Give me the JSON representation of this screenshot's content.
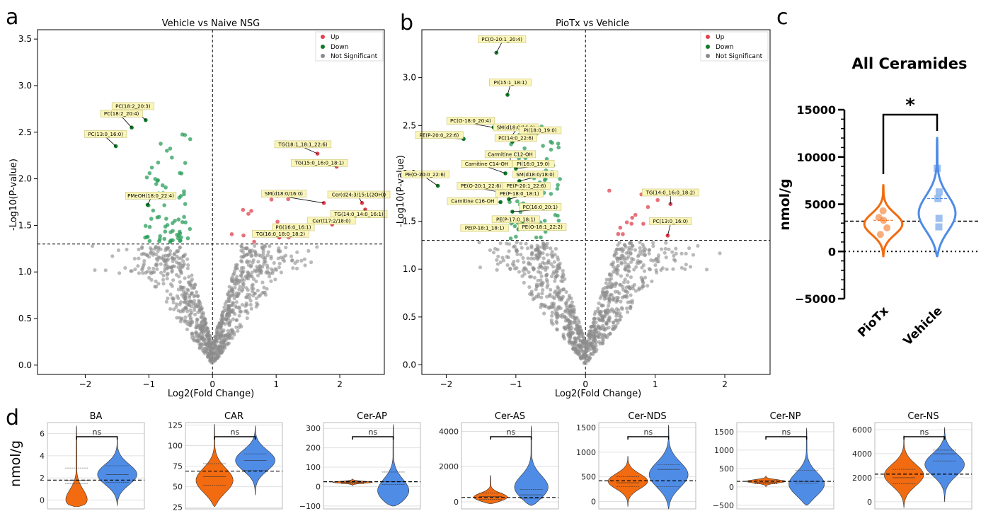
{
  "panel_letters": [
    "a",
    "b",
    "c",
    "d"
  ],
  "colors": {
    "up": "#e0414d",
    "down": "#2a9d5a",
    "ns": "#8c8c8c",
    "pio": "#f26b10",
    "veh": "#4f8ce6"
  },
  "legend": {
    "up": "Up",
    "down": "Down",
    "ns": "Not Significant"
  },
  "chart_data": [
    {
      "id": "volcano_a",
      "type": "scatter",
      "title": "Vehicle vs Naive NSG",
      "xlabel": "Log2(Fold Change)",
      "ylabel": "-Log10(P-value)",
      "xlim": [
        -2.75,
        2.7
      ],
      "ylim": [
        -0.1,
        3.6
      ],
      "xticks": [
        -2,
        -1,
        0,
        1,
        2
      ],
      "yticks": [
        0.0,
        0.5,
        1.0,
        1.5,
        2.0,
        2.5,
        3.0,
        3.5
      ],
      "threshold_y": 1.3,
      "threshold_x": 0,
      "legend_position": "top-right",
      "annotations": [
        {
          "label": "PC(18:2_20:3)",
          "x": -1.05,
          "y": 2.63,
          "tx": -1.25,
          "ty": 2.78
        },
        {
          "label": "PC(18:2_20:4)",
          "x": -1.27,
          "y": 2.55,
          "tx": -1.43,
          "ty": 2.7
        },
        {
          "label": "PC(13:0_16:0)",
          "x": -1.52,
          "y": 2.35,
          "tx": -1.68,
          "ty": 2.48
        },
        {
          "label": "PMeOH(18:0_22:4)",
          "x": -1.02,
          "y": 1.72,
          "tx": -0.97,
          "ty": 1.82
        },
        {
          "label": "TG(18:1_18:1_22:6)",
          "x": 1.65,
          "y": 2.27,
          "tx": 1.42,
          "ty": 2.37
        },
        {
          "label": "TG(15:0_16:0_18:1)",
          "x": 1.95,
          "y": 2.13,
          "tx": 1.68,
          "ty": 2.17
        },
        {
          "label": "SM(d18:0/16:0)",
          "x": 1.75,
          "y": 1.74,
          "tx": 1.12,
          "ty": 1.84
        },
        {
          "label": "Cer(d24:3/15:1(2OH))",
          "x": 2.35,
          "y": 1.74,
          "tx": 2.3,
          "ty": 1.83
        },
        {
          "label": "TG(14:0_14:0_16:1)",
          "x": 2.4,
          "y": 1.67,
          "tx": 2.3,
          "ty": 1.62
        },
        {
          "label": "Cer(t17:2/18:0)",
          "x": 1.88,
          "y": 1.51,
          "tx": 1.87,
          "ty": 1.55
        },
        {
          "label": "PG(16:0_16:1)",
          "x": 1.2,
          "y": 1.42,
          "tx": 1.27,
          "ty": 1.48
        },
        {
          "label": "TG(16:0_18:0_18:2)",
          "x": 1.05,
          "y": 1.37,
          "tx": 1.07,
          "ty": 1.41
        }
      ]
    },
    {
      "id": "volcano_b",
      "type": "scatter",
      "title": "PioTx vs Vehicle",
      "xlabel": "Log2(Fold Change)",
      "ylabel": "-Log10(P-value)",
      "xlim": [
        -2.35,
        2.65
      ],
      "ylim": [
        -0.1,
        3.5
      ],
      "xticks": [
        -2,
        -1,
        0,
        1,
        2
      ],
      "yticks": [
        0.0,
        0.5,
        1.0,
        1.5,
        2.0,
        2.5,
        3.0
      ],
      "threshold_y": 1.3,
      "threshold_x": 0,
      "legend_position": "top-right",
      "annotations": [
        {
          "label": "PC(O-20:1_20:4)",
          "x": -1.28,
          "y": 3.26,
          "tx": -1.2,
          "ty": 3.4
        },
        {
          "label": "PI(15:1_18:1)",
          "x": -1.12,
          "y": 2.82,
          "tx": -1.08,
          "ty": 2.95
        },
        {
          "label": "PC(O-18:0_20:4)",
          "x": -1.32,
          "y": 2.48,
          "tx": -1.65,
          "ty": 2.55
        },
        {
          "label": "SM(d18:0/16:0)",
          "x": -1.08,
          "y": 2.37,
          "tx": -1.0,
          "ty": 2.48
        },
        {
          "label": "PI(18:0_19:0)",
          "x": -0.95,
          "y": 2.4,
          "tx": -0.65,
          "ty": 2.45
        },
        {
          "label": "PE(P-20:0_22:6)",
          "x": -1.75,
          "y": 2.36,
          "tx": -2.1,
          "ty": 2.4
        },
        {
          "label": "PC(14:0_22:6)",
          "x": -1.05,
          "y": 2.33,
          "tx": -1.0,
          "ty": 2.37
        },
        {
          "label": "Carmitine C12-OH",
          "x": -1.08,
          "y": 2.08,
          "tx": -1.08,
          "ty": 2.2
        },
        {
          "label": "Carnitine C14-OH",
          "x": -1.15,
          "y": 2.0,
          "tx": -1.42,
          "ty": 2.1
        },
        {
          "label": "PI(16:0_19:0)",
          "x": -1.0,
          "y": 2.05,
          "tx": -0.75,
          "ty": 2.1
        },
        {
          "label": "PE(O-20:0_22:6)",
          "x": -2.12,
          "y": 1.87,
          "tx": -2.3,
          "ty": 1.99
        },
        {
          "label": "SM(d18:0/18:0)",
          "x": -0.95,
          "y": 1.92,
          "tx": -0.72,
          "ty": 1.99
        },
        {
          "label": "PE(O-20:1_22:6)",
          "x": -1.2,
          "y": 1.8,
          "tx": -1.5,
          "ty": 1.87
        },
        {
          "label": "PE(P-20:1_22:6)",
          "x": -1.08,
          "y": 1.8,
          "tx": -0.85,
          "ty": 1.87
        },
        {
          "label": "PE(P-18:0_18:1)",
          "x": -1.1,
          "y": 1.73,
          "tx": -0.95,
          "ty": 1.79
        },
        {
          "label": "Carnitine C16-OH",
          "x": -1.22,
          "y": 1.7,
          "tx": -1.62,
          "ty": 1.71
        },
        {
          "label": "PC(16:0_20:1)",
          "x": -1.05,
          "y": 1.6,
          "tx": -0.65,
          "ty": 1.65
        },
        {
          "label": "PE(P-17:0_18:1)",
          "x": -1.0,
          "y": 1.51,
          "tx": -1.0,
          "ty": 1.52
        },
        {
          "label": "PE(O-18:1_22:2)",
          "x": -0.9,
          "y": 1.47,
          "tx": -0.62,
          "ty": 1.44
        },
        {
          "label": "PE(P-18:1_18:1)",
          "x": -1.25,
          "y": 1.42,
          "tx": -1.45,
          "ty": 1.43
        },
        {
          "label": "TG(14:0_16:0_18:2)",
          "x": 1.22,
          "y": 1.68,
          "tx": 1.22,
          "ty": 1.8
        },
        {
          "label": "PC(13:0_16:0)",
          "x": 1.18,
          "y": 1.35,
          "tx": 1.22,
          "ty": 1.5
        }
      ]
    },
    {
      "id": "violin_c",
      "type": "violin",
      "title": "All Ceramides",
      "ylabel": "nmol/g",
      "categories": [
        "PioTx",
        "Vehicle"
      ],
      "ylim": [
        -5000,
        15000
      ],
      "yticks": [
        -5000,
        0,
        5000,
        10000,
        15000
      ],
      "mean_line": 3200,
      "significance": "*",
      "series": [
        {
          "name": "PioTx",
          "values": [
            4300,
            3600,
            3300,
            2500,
            1800
          ],
          "min": -500,
          "max": 7000
        },
        {
          "name": "Vehicle",
          "values": [
            8800,
            6300,
            5600,
            3500,
            2600
          ],
          "min": -500,
          "max": 12000
        }
      ]
    },
    {
      "id": "violins_d",
      "type": "violin",
      "ylabel": "nmol/g",
      "categories": [
        "PioTx",
        "Vehicle"
      ],
      "panels": [
        {
          "title": "BA",
          "sig": "ns",
          "ylim": [
            -0.8,
            7
          ],
          "yticks": [
            0,
            2,
            4,
            6
          ],
          "line": 1.8,
          "pio": {
            "min": -0.6,
            "max": 6.7,
            "peak": 0.0,
            "median": 1.8,
            "q1": 1.5,
            "q3": 2.9
          },
          "veh": {
            "min": -0.5,
            "max": 5.7,
            "peak": 0.45,
            "median": 2.3,
            "q1": 1.6,
            "q3": 3.1
          }
        },
        {
          "title": "CAR",
          "sig": "ns",
          "ylim": [
            23,
            128
          ],
          "yticks": [
            25,
            50,
            75,
            100,
            125
          ],
          "line": 69,
          "pio": {
            "min": 26,
            "max": 126,
            "peak": 0.3,
            "median": 62,
            "q1": 52,
            "q3": 78
          },
          "veh": {
            "min": 40,
            "max": 124,
            "peak": 0.5,
            "median": 82,
            "q1": 70,
            "q3": 90
          }
        },
        {
          "title": "Cer-AP",
          "sig": "ns",
          "ylim": [
            -115,
            330
          ],
          "yticks": [
            -100,
            0,
            100,
            200,
            300
          ],
          "line": 25,
          "pio": {
            "min": 5,
            "max": 40,
            "peak": 0.5,
            "median": 22,
            "q1": 15,
            "q3": 28
          },
          "veh": {
            "min": -100,
            "max": 320,
            "peak": 0.15,
            "median": 25,
            "q1": 10,
            "q3": 75
          }
        },
        {
          "title": "Cer-AS",
          "sig": "ns",
          "ylim": [
            -400,
            4500
          ],
          "yticks": [
            0,
            2000,
            4000
          ],
          "line": 250,
          "pio": {
            "min": -100,
            "max": 1500,
            "peak": 0.2,
            "median": 300,
            "q1": 150,
            "q3": 500
          },
          "veh": {
            "min": -200,
            "max": 4300,
            "peak": 0.2,
            "median": 400,
            "q1": 200,
            "q3": 700
          }
        },
        {
          "title": "Cer-NDS",
          "sig": "ns",
          "ylim": [
            -150,
            1600
          ],
          "yticks": [
            0,
            500,
            1000,
            1500
          ],
          "line": 420,
          "pio": {
            "min": -100,
            "max": 920,
            "peak": 0.5,
            "median": 380,
            "q1": 300,
            "q3": 500
          },
          "veh": {
            "min": -150,
            "max": 1550,
            "peak": 0.4,
            "median": 650,
            "q1": 300,
            "q3": 750
          }
        },
        {
          "title": "Cer-NP",
          "sig": "ns",
          "ylim": [
            -600,
            1750
          ],
          "yticks": [
            -500,
            0,
            500,
            1000,
            1500
          ],
          "line": 150,
          "pio": {
            "min": 0,
            "max": 300,
            "peak": 0.5,
            "median": 120,
            "q1": 80,
            "q3": 180
          },
          "veh": {
            "min": -500,
            "max": 1600,
            "peak": 0.25,
            "median": 150,
            "q1": 100,
            "q3": 450
          }
        },
        {
          "title": "Cer-NS",
          "sig": "ns",
          "ylim": [
            -600,
            6600
          ],
          "yticks": [
            0,
            2000,
            4000,
            6000
          ],
          "line": 2300,
          "pio": {
            "min": -500,
            "max": 5500,
            "peak": 0.45,
            "median": 2000,
            "q1": 1500,
            "q3": 2700
          },
          "veh": {
            "min": 0,
            "max": 6200,
            "peak": 0.5,
            "median": 4000,
            "q1": 3400,
            "q3": 4300
          }
        }
      ]
    }
  ]
}
